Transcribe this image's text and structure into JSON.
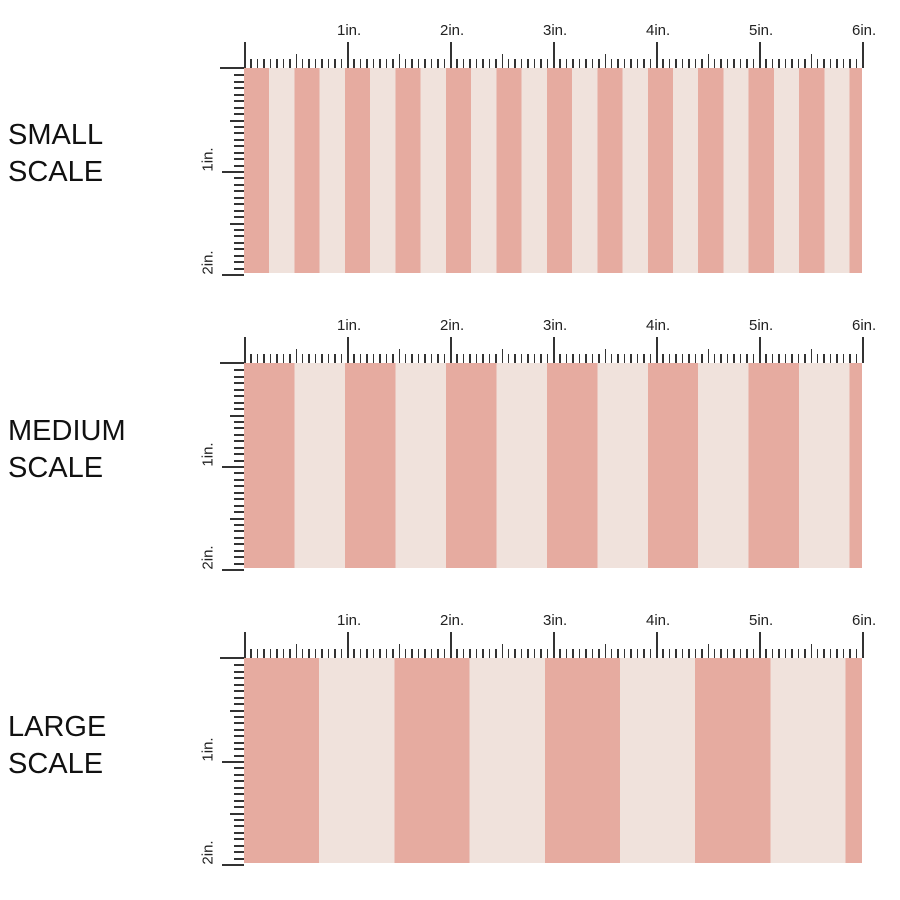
{
  "colors": {
    "stripe": "#e6aba0",
    "background": "#f0e2dc"
  },
  "ruler": {
    "horizontal_labels": [
      "1in.",
      "2in.",
      "3in.",
      "4in.",
      "5in.",
      "6in."
    ],
    "vertical_labels": [
      "1in.",
      "2in."
    ]
  },
  "panels": [
    {
      "label_line1": "SMALL",
      "label_line2": "SCALE",
      "stripe_period_in": 0.49
    },
    {
      "label_line1": "MEDIUM",
      "label_line2": "SCALE",
      "stripe_period_in": 0.98
    },
    {
      "label_line1": "LARGE",
      "label_line2": "SCALE",
      "stripe_period_in": 1.46
    }
  ]
}
